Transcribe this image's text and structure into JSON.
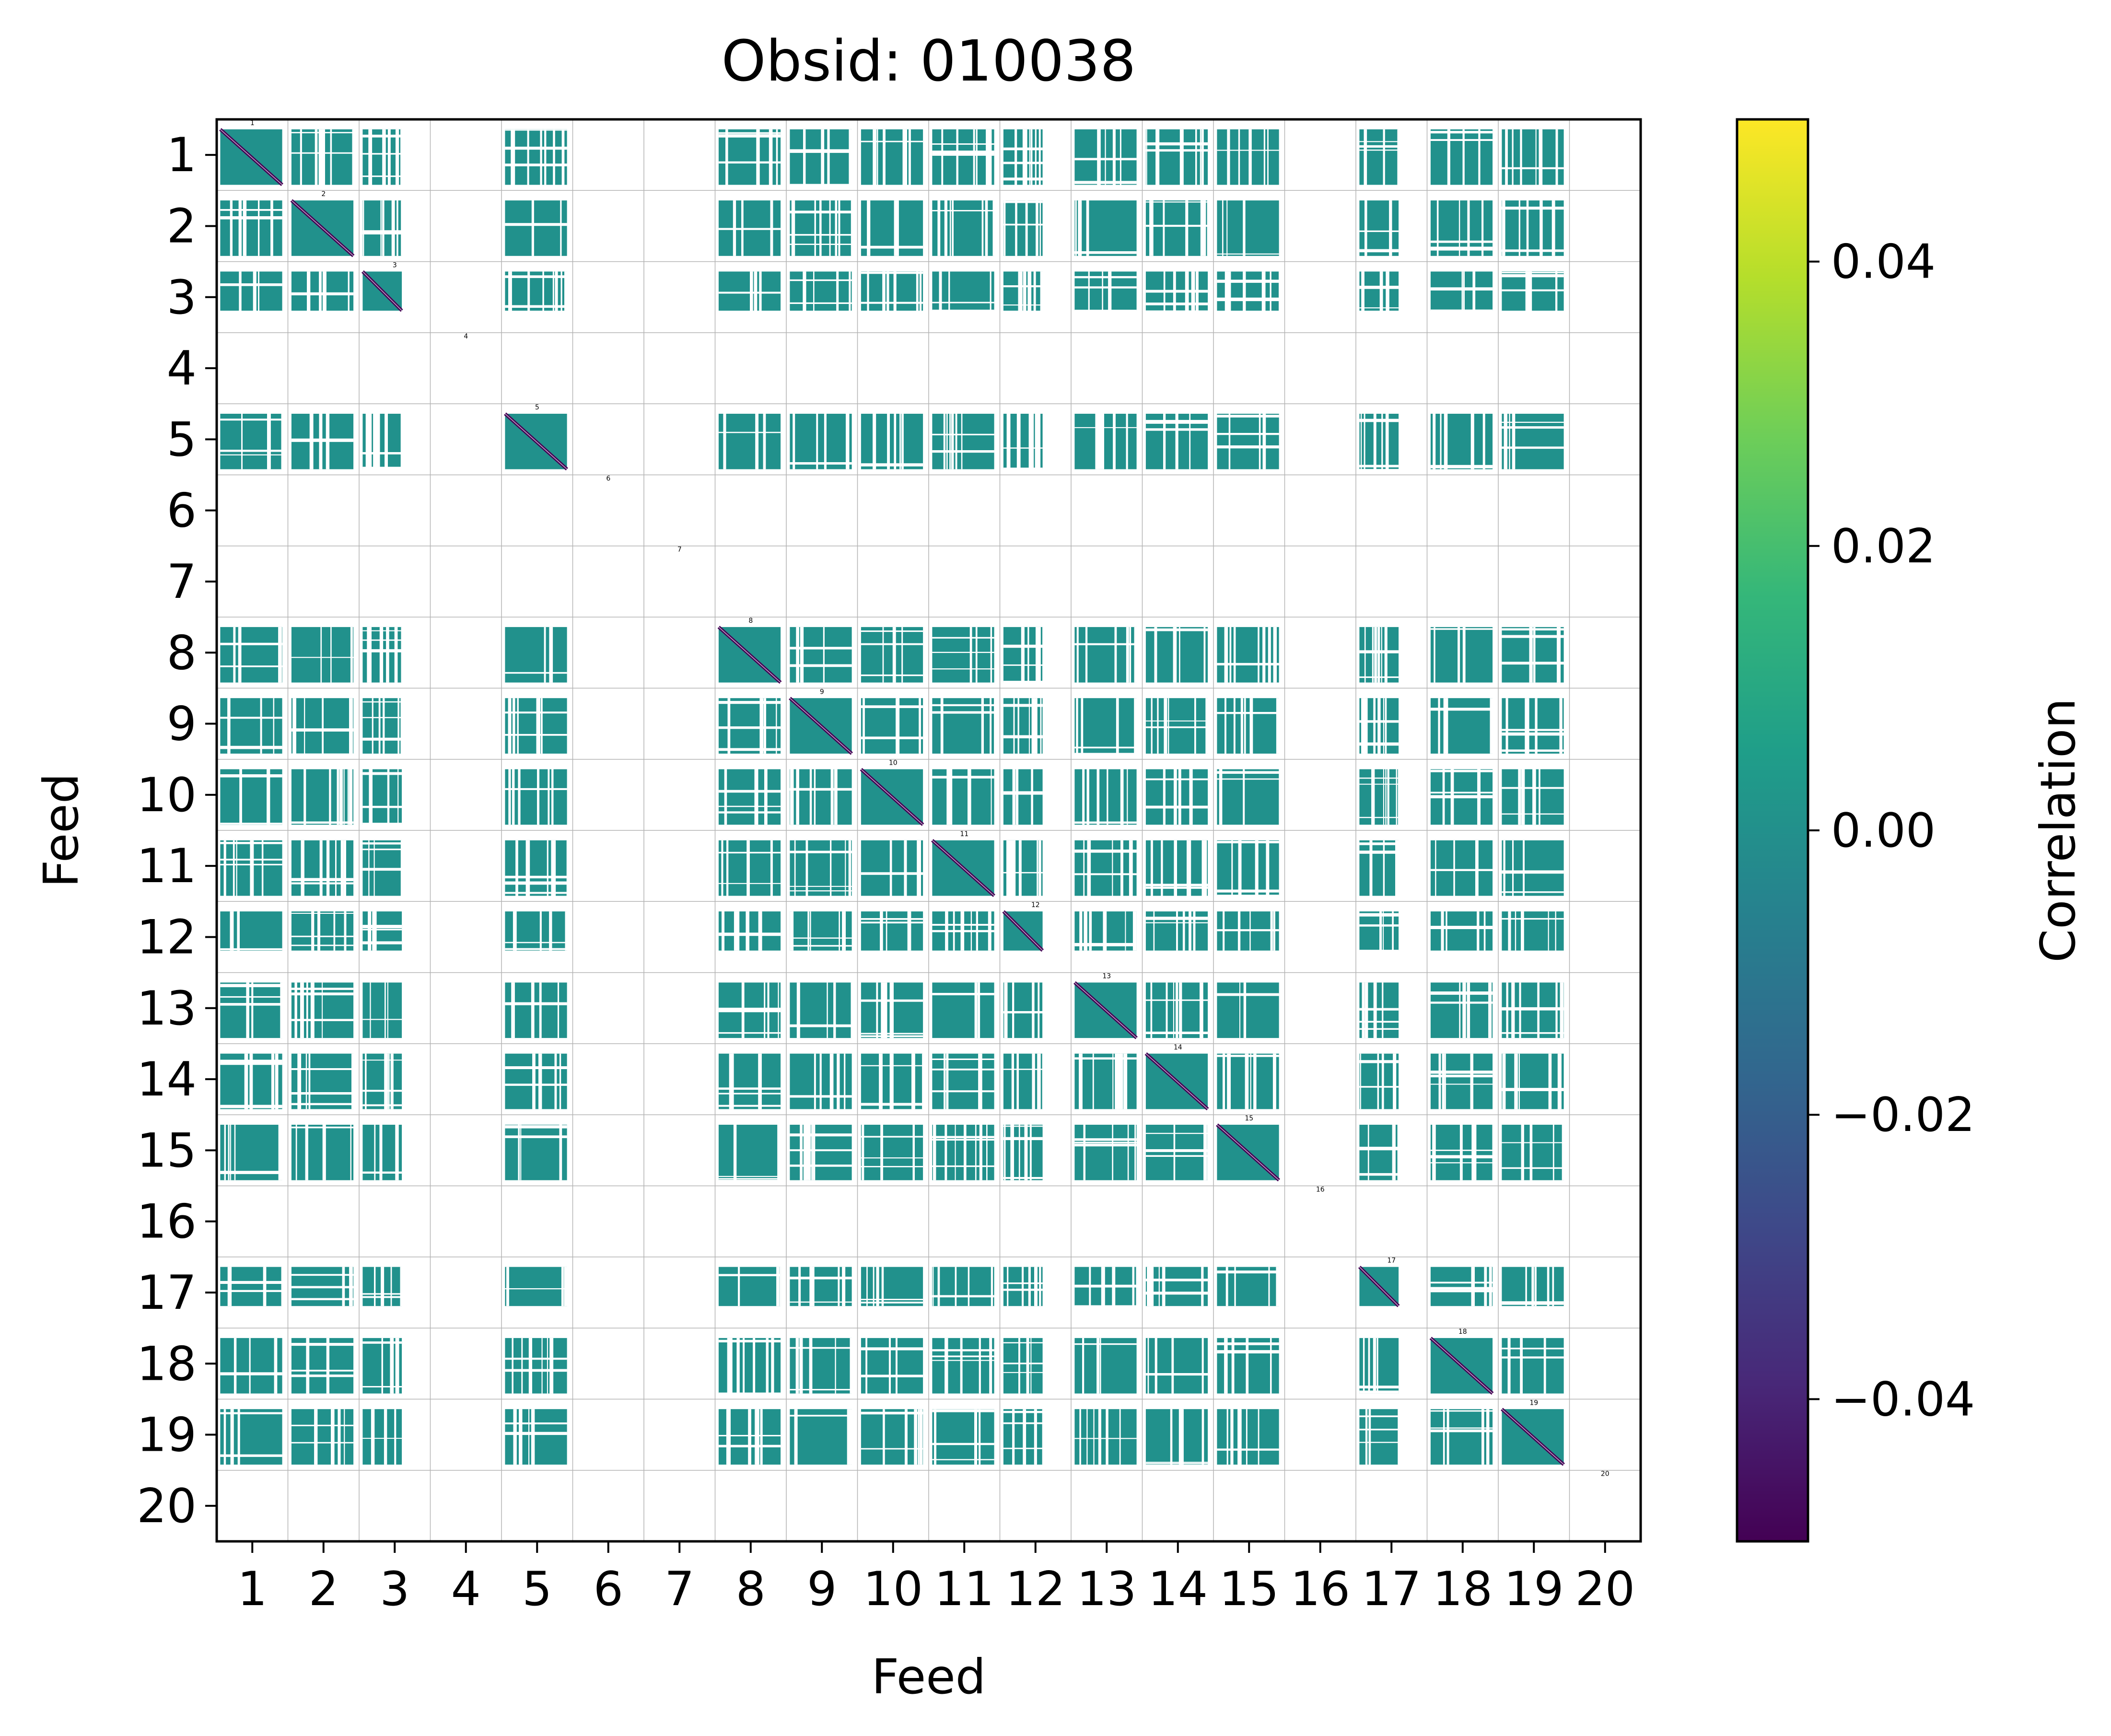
{
  "chart_data": {
    "type": "heatmap",
    "title": "Obsid: 010038",
    "xlabel": "Feed",
    "ylabel": "Feed",
    "feeds": [
      1,
      2,
      3,
      4,
      5,
      6,
      7,
      8,
      9,
      10,
      11,
      12,
      13,
      14,
      15,
      16,
      17,
      18,
      19,
      20
    ],
    "active_feeds": [
      1,
      2,
      3,
      5,
      8,
      9,
      10,
      11,
      12,
      13,
      14,
      15,
      17,
      18,
      19
    ],
    "empty_feeds": [
      4,
      6,
      7,
      16,
      20
    ],
    "partial_coverage_feeds": [
      3,
      12,
      17
    ],
    "dominant_correlation_value": 0.0,
    "diagonal_correlation_value": -0.05,
    "diagonal_labels": [
      "1",
      "2",
      "3",
      "4",
      "5",
      "6",
      "7",
      "8",
      "9",
      "10",
      "11",
      "12",
      "13",
      "14",
      "15",
      "16",
      "17",
      "18",
      "19",
      "20"
    ],
    "colorbar": {
      "label": "Correlation",
      "colormap": "viridis",
      "range": [
        -0.05,
        0.05
      ],
      "ticks": [
        -0.04,
        -0.02,
        0.0,
        0.02,
        0.04
      ],
      "tick_labels": [
        "−0.04",
        "−0.02",
        "0.00",
        "0.02",
        "0.04"
      ]
    },
    "colors": {
      "dominant": "#21918c",
      "diagonal": "#440154",
      "light": "#9ad8cc",
      "grid": "#b4b4b4",
      "viridis_stops": [
        "#440154",
        "#482878",
        "#3e4989",
        "#31688e",
        "#26828e",
        "#1f9e89",
        "#35b779",
        "#6ece58",
        "#b5de2b",
        "#fde725"
      ]
    }
  }
}
